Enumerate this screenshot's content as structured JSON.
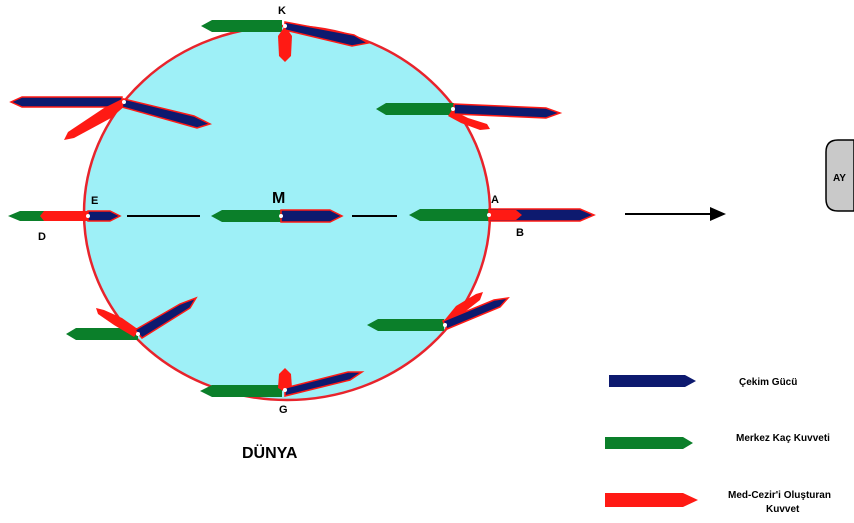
{
  "labels": {
    "point_k": "K",
    "point_e": "E",
    "point_d": "D",
    "point_a": "A",
    "point_b": "B",
    "point_g": "G",
    "center": "M",
    "earth": "DÜNYA",
    "moon": "AY"
  },
  "legend": {
    "gravity": "Çekim Gücü",
    "centrifugal": "Merkez Kaç Kuvveti",
    "tidal_line1": "Med-Cezir'i Oluşturan",
    "tidal_line2": "Kuvvet"
  },
  "colors": {
    "earth_fill": "#9ef0f7",
    "earth_stroke": "#e8242c",
    "gravity": "#0d1a6f",
    "centrifugal": "#0b7f2a",
    "tidal": "#ff1a14",
    "moon_fill": "#c9c9c9"
  }
}
